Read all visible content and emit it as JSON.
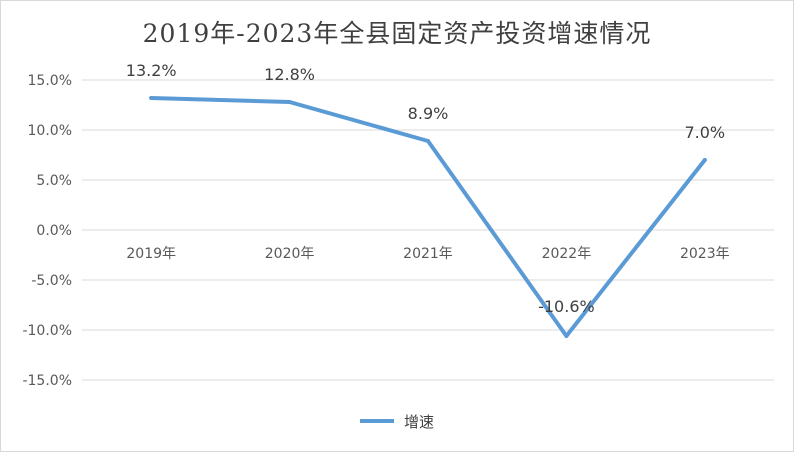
{
  "chart_data": {
    "type": "line",
    "title": "2019年-2023年全县固定资产投资增速情况",
    "categories": [
      "2019年",
      "2020年",
      "2021年",
      "2022年",
      "2023年"
    ],
    "series": [
      {
        "name": "增速",
        "values": [
          13.2,
          12.8,
          8.9,
          -10.6,
          7.0
        ],
        "color": "#5b9bd5",
        "labels": [
          "13.2%",
          "12.8%",
          "8.9%",
          "-10.6%",
          "7.0%"
        ]
      }
    ],
    "y_ticks": [
      "15.0%",
      "10.0%",
      "5.0%",
      "0.0%",
      "-5.0%",
      "-10.0%",
      "-15.0%"
    ],
    "ylim": [
      -15,
      15
    ],
    "grid": true,
    "legend": "bottom"
  }
}
